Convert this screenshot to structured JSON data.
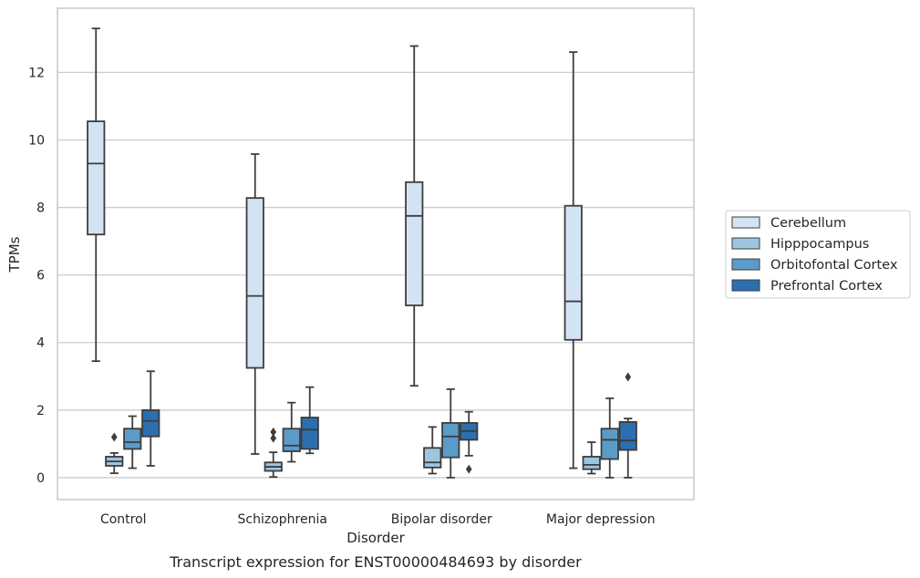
{
  "chart_data": {
    "type": "box",
    "title": "",
    "caption": "Transcript expression for ENST00000484693 by disorder",
    "xlabel": "Disorder",
    "ylabel": "TPMs",
    "ylim": [
      -0.65,
      13.9
    ],
    "yticks": [
      0,
      2,
      4,
      6,
      8,
      10,
      12
    ],
    "grid": "horizontal",
    "legend_position": "right",
    "categories": [
      "Control",
      "Schizophrenia",
      "Bipolar disorder",
      "Major depression"
    ],
    "series": [
      {
        "name": "Cerebellum",
        "color": "#d4e3f3",
        "boxes": [
          {
            "whisker_low": 3.45,
            "q1": 7.2,
            "median": 9.3,
            "q3": 10.55,
            "whisker_high": 13.3,
            "outliers": []
          },
          {
            "whisker_low": 0.7,
            "q1": 3.25,
            "median": 5.38,
            "q3": 8.28,
            "whisker_high": 9.58,
            "outliers": []
          },
          {
            "whisker_low": 2.72,
            "q1": 5.1,
            "median": 7.75,
            "q3": 8.75,
            "whisker_high": 12.78,
            "outliers": []
          },
          {
            "whisker_low": 0.28,
            "q1": 4.08,
            "median": 5.22,
            "q3": 8.05,
            "whisker_high": 12.6,
            "outliers": []
          }
        ]
      },
      {
        "name": "Hipppocampus",
        "color": "#9dc5e0",
        "boxes": [
          {
            "whisker_low": 0.13,
            "q1": 0.35,
            "median": 0.48,
            "q3": 0.62,
            "whisker_high": 0.73,
            "outliers": [
              1.2
            ]
          },
          {
            "whisker_low": 0.02,
            "q1": 0.2,
            "median": 0.32,
            "q3": 0.45,
            "whisker_high": 0.75,
            "outliers": [
              1.17,
              1.35
            ]
          },
          {
            "whisker_low": 0.12,
            "q1": 0.3,
            "median": 0.45,
            "q3": 0.88,
            "whisker_high": 1.5,
            "outliers": []
          },
          {
            "whisker_low": 0.12,
            "q1": 0.25,
            "median": 0.38,
            "q3": 0.62,
            "whisker_high": 1.05,
            "outliers": []
          }
        ]
      },
      {
        "name": "Orbitofontal Cortex",
        "color": "#5b9bc9",
        "boxes": [
          {
            "whisker_low": 0.28,
            "q1": 0.85,
            "median": 1.05,
            "q3": 1.45,
            "whisker_high": 1.82,
            "outliers": []
          },
          {
            "whisker_low": 0.47,
            "q1": 0.78,
            "median": 0.95,
            "q3": 1.45,
            "whisker_high": 2.22,
            "outliers": []
          },
          {
            "whisker_low": 0.0,
            "q1": 0.6,
            "median": 1.22,
            "q3": 1.62,
            "whisker_high": 2.62,
            "outliers": []
          },
          {
            "whisker_low": 0.0,
            "q1": 0.55,
            "median": 1.12,
            "q3": 1.45,
            "whisker_high": 2.35,
            "outliers": []
          }
        ]
      },
      {
        "name": "Prefrontal Cortex",
        "color": "#2c6fb1",
        "boxes": [
          {
            "whisker_low": 0.35,
            "q1": 1.22,
            "median": 1.68,
            "q3": 2.0,
            "whisker_high": 3.15,
            "outliers": []
          },
          {
            "whisker_low": 0.72,
            "q1": 0.85,
            "median": 1.42,
            "q3": 1.78,
            "whisker_high": 2.68,
            "outliers": []
          },
          {
            "whisker_low": 0.65,
            "q1": 1.12,
            "median": 1.38,
            "q3": 1.62,
            "whisker_high": 1.95,
            "outliers": [
              0.25
            ]
          },
          {
            "whisker_low": 0.0,
            "q1": 0.82,
            "median": 1.1,
            "q3": 1.65,
            "whisker_high": 1.75,
            "outliers": [
              2.98
            ]
          }
        ]
      }
    ]
  }
}
